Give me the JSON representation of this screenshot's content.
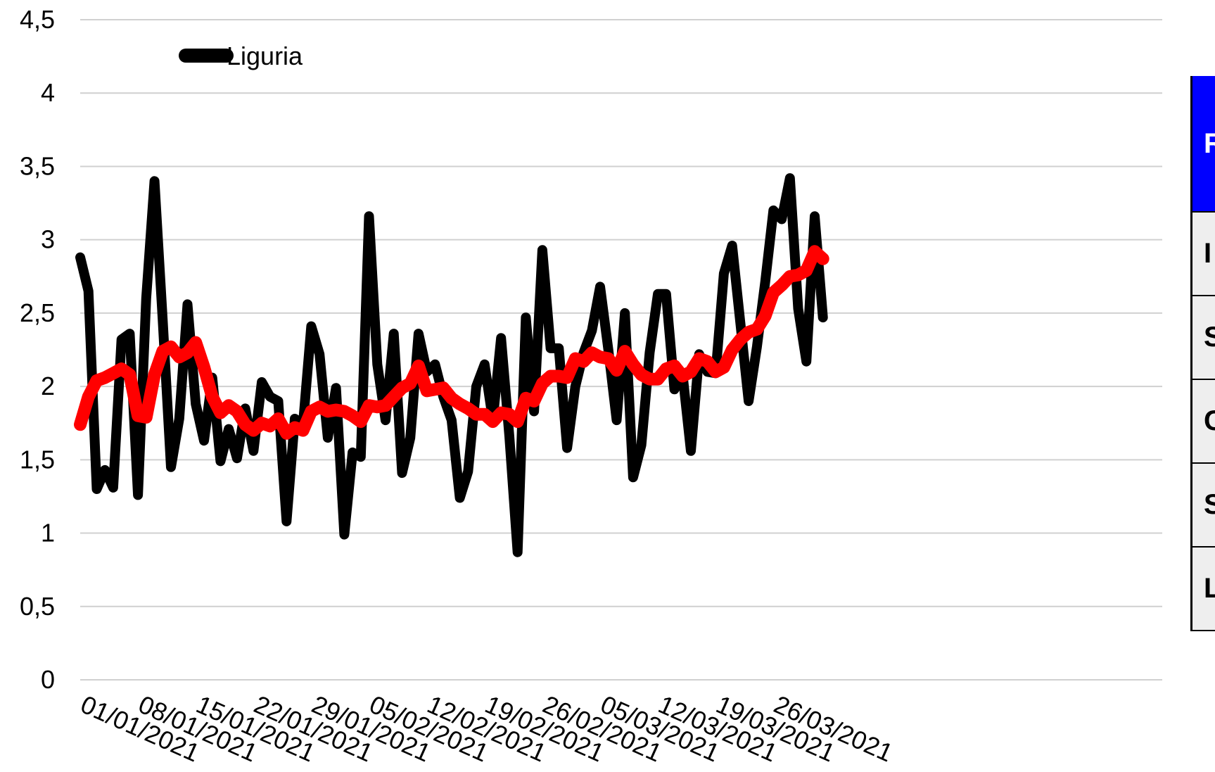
{
  "chart_data": {
    "type": "line",
    "x_start": "01/01/2021",
    "x_ticks": [
      "01/01/2021",
      "08/01/2021",
      "15/01/2021",
      "22/01/2021",
      "29/01/2021",
      "05/02/2021",
      "12/02/2021",
      "19/02/2021",
      "26/02/2021",
      "05/03/2021",
      "12/03/2021",
      "19/03/2021",
      "26/03/2021"
    ],
    "y_ticks": [
      "0",
      "0,5",
      "1",
      "1,5",
      "2",
      "2,5",
      "3",
      "3,5",
      "4",
      "4,5"
    ],
    "ylim": [
      0,
      4.5
    ],
    "grid": true,
    "legend_position": "top-left",
    "series": [
      {
        "name": "Liguria",
        "color": "#000000",
        "values": [
          2.88,
          2.65,
          1.3,
          1.43,
          1.31,
          2.32,
          2.36,
          1.26,
          2.6,
          3.4,
          2.45,
          1.45,
          1.78,
          2.56,
          1.88,
          1.63,
          2.06,
          1.49,
          1.71,
          1.51,
          1.85,
          1.56,
          2.03,
          1.93,
          1.9,
          1.08,
          1.78,
          1.74,
          2.41,
          2.22,
          1.65,
          1.99,
          0.99,
          1.55,
          1.52,
          3.16,
          2.15,
          1.77,
          2.36,
          1.41,
          1.65,
          2.36,
          2.1,
          2.15,
          1.93,
          1.77,
          1.24,
          1.42,
          2.0,
          2.15,
          1.77,
          2.33,
          1.66,
          0.87,
          2.47,
          1.83,
          2.93,
          2.26,
          2.26,
          1.58,
          2.0,
          2.23,
          2.38,
          2.68,
          2.25,
          1.77,
          2.5,
          1.38,
          1.6,
          2.23,
          2.63,
          2.63,
          1.98,
          2.08,
          1.56,
          2.22,
          2.1,
          2.09,
          2.77,
          2.96,
          2.43,
          1.9,
          2.27,
          2.71,
          3.2,
          3.14,
          3.42,
          2.53,
          2.17,
          3.16,
          2.47
        ],
        "label_on_legend": "Liguria"
      },
      {
        "name": "",
        "color": "#ff0000",
        "values": [
          1.74,
          1.93,
          2.04,
          2.06,
          2.09,
          2.12,
          2.08,
          1.8,
          1.79,
          2.08,
          2.24,
          2.27,
          2.2,
          2.23,
          2.3,
          2.13,
          1.93,
          1.82,
          1.87,
          1.83,
          1.74,
          1.7,
          1.75,
          1.73,
          1.78,
          1.68,
          1.72,
          1.7,
          1.83,
          1.86,
          1.83,
          1.84,
          1.83,
          1.8,
          1.76,
          1.87,
          1.86,
          1.87,
          1.93,
          1.99,
          2.02,
          2.14,
          1.97,
          1.98,
          1.99,
          1.92,
          1.88,
          1.85,
          1.81,
          1.81,
          1.76,
          1.82,
          1.81,
          1.76,
          1.92,
          1.9,
          2.02,
          2.07,
          2.07,
          2.06,
          2.19,
          2.17,
          2.23,
          2.2,
          2.19,
          2.11,
          2.24,
          2.15,
          2.08,
          2.05,
          2.05,
          2.12,
          2.14,
          2.07,
          2.1,
          2.19,
          2.17,
          2.1,
          2.13,
          2.25,
          2.32,
          2.37,
          2.39,
          2.48,
          2.64,
          2.69,
          2.75,
          2.76,
          2.79,
          2.92,
          2.87
        ]
      }
    ]
  },
  "side_table": {
    "header": "R",
    "rows": [
      "I",
      "S",
      "C",
      "S",
      "L"
    ]
  }
}
